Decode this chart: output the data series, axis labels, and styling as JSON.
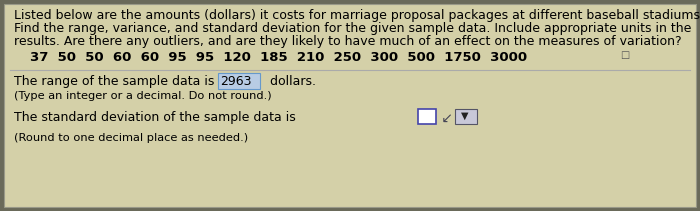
{
  "bg_color": "#d4d0a8",
  "outer_bg": "#6a6a5a",
  "line1": "Listed below are the amounts (dollars) it costs for marriage proposal packages at different baseball stadiums.",
  "line2": "Find the range, variance, and standard deviation for the given sample data. Include appropriate units in the",
  "line3": "results. Are there any outliers, and are they likely to have much of an effect on the measures of variation?",
  "data_line": "37  50  50  60  60  95  95  120  185  210  250  300  500  1750  3000",
  "range_text1": "The range of the sample data is ",
  "range_value": "2963",
  "range_unit": "  dollars.",
  "range_note": "(Type an integer or a decimal. Do not round.)",
  "std_text1": "The standard deviation of the sample data is",
  "std_note": "(Round to one decimal place as needed.)",
  "highlight_color": "#b8cce4",
  "text_color": "#000000",
  "font_size": 9.0,
  "small_font": 8.2,
  "data_font": 9.5
}
